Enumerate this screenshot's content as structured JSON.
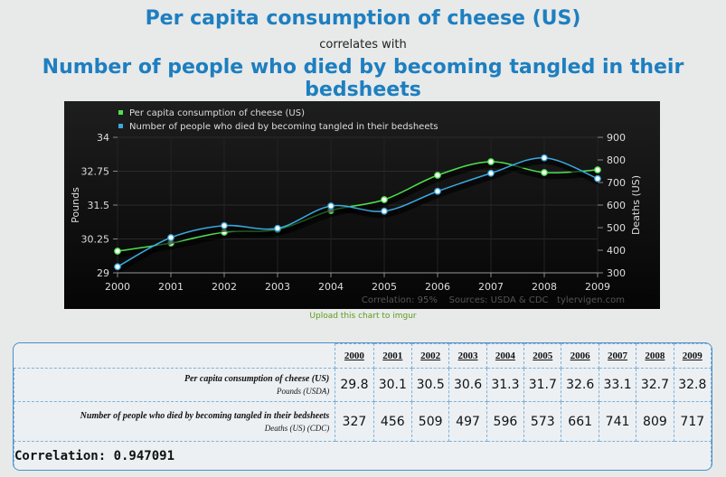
{
  "header": {
    "title_a": "Per capita consumption of cheese (US)",
    "correlates_with": "correlates with",
    "title_b": "Number of people who died by becoming tangled in their bedsheets"
  },
  "upload_link": "Upload this chart to imgur",
  "chart_data": {
    "type": "line",
    "x": [
      2000,
      2001,
      2002,
      2003,
      2004,
      2005,
      2006,
      2007,
      2008,
      2009
    ],
    "series": [
      {
        "name": "Per capita consumption of cheese (US)",
        "axis": "left",
        "color": "#4ee04e",
        "values": [
          29.8,
          30.1,
          30.5,
          30.6,
          31.3,
          31.7,
          32.6,
          33.1,
          32.7,
          32.8
        ]
      },
      {
        "name": "Number of people who died by becoming tangled in their bedsheets",
        "axis": "right",
        "color": "#3aa8e0",
        "values": [
          327,
          456,
          509,
          497,
          596,
          573,
          661,
          741,
          809,
          717
        ]
      }
    ],
    "ylabel_left": "Pounds",
    "ylabel_right": "Deaths (US)",
    "ylim_left": [
      29,
      34
    ],
    "yticks_left": [
      "29",
      "30.25",
      "31.5",
      "32.75",
      "34"
    ],
    "ylim_right": [
      300,
      900
    ],
    "yticks_right": [
      "300",
      "400",
      "500",
      "600",
      "700",
      "800",
      "900"
    ],
    "xticks": [
      "2000",
      "2001",
      "2002",
      "2003",
      "2004",
      "2005",
      "2006",
      "2007",
      "2008",
      "2009"
    ],
    "footer": "Correlation: 95%    Sources: USDA & CDC   tylervigen.com",
    "legend_position": "top-left",
    "background": "#111111"
  },
  "table": {
    "years": [
      "2000",
      "2001",
      "2002",
      "2003",
      "2004",
      "2005",
      "2006",
      "2007",
      "2008",
      "2009"
    ],
    "rows": [
      {
        "label": "Per capita consumption of cheese (US)",
        "unit": "Pounds (USDA)",
        "values": [
          "29.8",
          "30.1",
          "30.5",
          "30.6",
          "31.3",
          "31.7",
          "32.6",
          "33.1",
          "32.7",
          "32.8"
        ]
      },
      {
        "label": "Number of people who died by becoming tangled in their bedsheets",
        "unit": "Deaths (US) (CDC)",
        "values": [
          "327",
          "456",
          "509",
          "497",
          "596",
          "573",
          "661",
          "741",
          "809",
          "717"
        ]
      }
    ],
    "correlation": "Correlation: 0.947091"
  }
}
